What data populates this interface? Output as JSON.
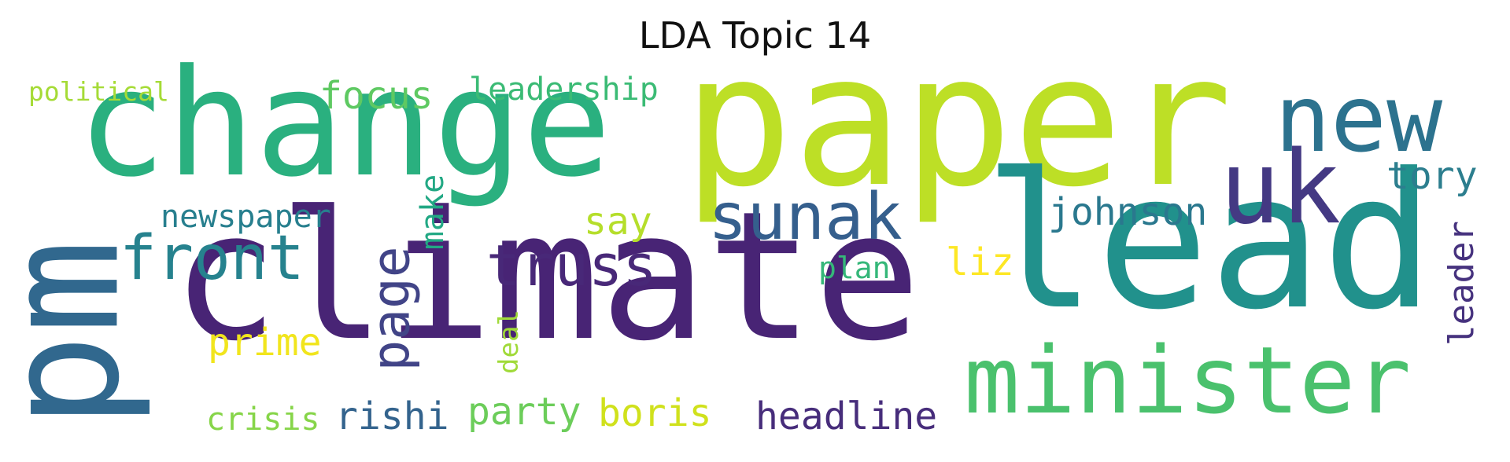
{
  "title": "LDA Topic 14",
  "words": [
    {
      "key": "paper",
      "text": "paper",
      "color": "#bddf26",
      "rotate": false
    },
    {
      "key": "climate",
      "text": "climate",
      "color": "#482475",
      "rotate": false
    },
    {
      "key": "change",
      "text": "change",
      "color": "#2ab07f",
      "rotate": false
    },
    {
      "key": "lead",
      "text": "lead",
      "color": "#21918c",
      "rotate": false
    },
    {
      "key": "pm",
      "text": "pm",
      "color": "#31688e",
      "rotate": true
    },
    {
      "key": "minister",
      "text": "minister",
      "color": "#4ac16d",
      "rotate": false
    },
    {
      "key": "new",
      "text": "new",
      "color": "#2c728e",
      "rotate": false
    },
    {
      "key": "uk",
      "text": "uk",
      "color": "#443983",
      "rotate": false
    },
    {
      "key": "sunak",
      "text": "sunak",
      "color": "#355f8d",
      "rotate": false
    },
    {
      "key": "front",
      "text": "front",
      "color": "#26828e",
      "rotate": false
    },
    {
      "key": "truss",
      "text": "truss",
      "color": "#482878",
      "rotate": false
    },
    {
      "key": "page",
      "text": "page",
      "color": "#414487",
      "rotate": true
    },
    {
      "key": "johnson",
      "text": "johnson",
      "color": "#2a788e",
      "rotate": false
    },
    {
      "key": "tory",
      "text": "tory",
      "color": "#2c7e8e",
      "rotate": false
    },
    {
      "key": "focus",
      "text": "focus",
      "color": "#5ec962",
      "rotate": false
    },
    {
      "key": "leadership",
      "text": "leadership",
      "color": "#3bbb75",
      "rotate": false
    },
    {
      "key": "political",
      "text": "political",
      "color": "#a5db36",
      "rotate": false
    },
    {
      "key": "newspaper",
      "text": "newspaper",
      "color": "#277f8e",
      "rotate": false
    },
    {
      "key": "make",
      "text": "make",
      "color": "#22a884",
      "rotate": true
    },
    {
      "key": "say",
      "text": "say",
      "color": "#b5de2b",
      "rotate": false
    },
    {
      "key": "liz",
      "text": "liz",
      "color": "#fde725",
      "rotate": false
    },
    {
      "key": "plan",
      "text": "plan",
      "color": "#35b779",
      "rotate": false
    },
    {
      "key": "leader",
      "text": "leader",
      "color": "#46327e",
      "rotate": true
    },
    {
      "key": "prime",
      "text": "prime",
      "color": "#f1e51d",
      "rotate": false
    },
    {
      "key": "deal",
      "text": "deal",
      "color": "#a0da39",
      "rotate": true
    },
    {
      "key": "party",
      "text": "party",
      "color": "#6ccd5a",
      "rotate": false
    },
    {
      "key": "boris",
      "text": "boris",
      "color": "#d0e11c",
      "rotate": false
    },
    {
      "key": "crisis",
      "text": "crisis",
      "color": "#86d549",
      "rotate": false
    },
    {
      "key": "rishi",
      "text": "rishi",
      "color": "#33638d",
      "rotate": false
    },
    {
      "key": "headline",
      "text": "headline",
      "color": "#472d7b",
      "rotate": false
    }
  ]
}
